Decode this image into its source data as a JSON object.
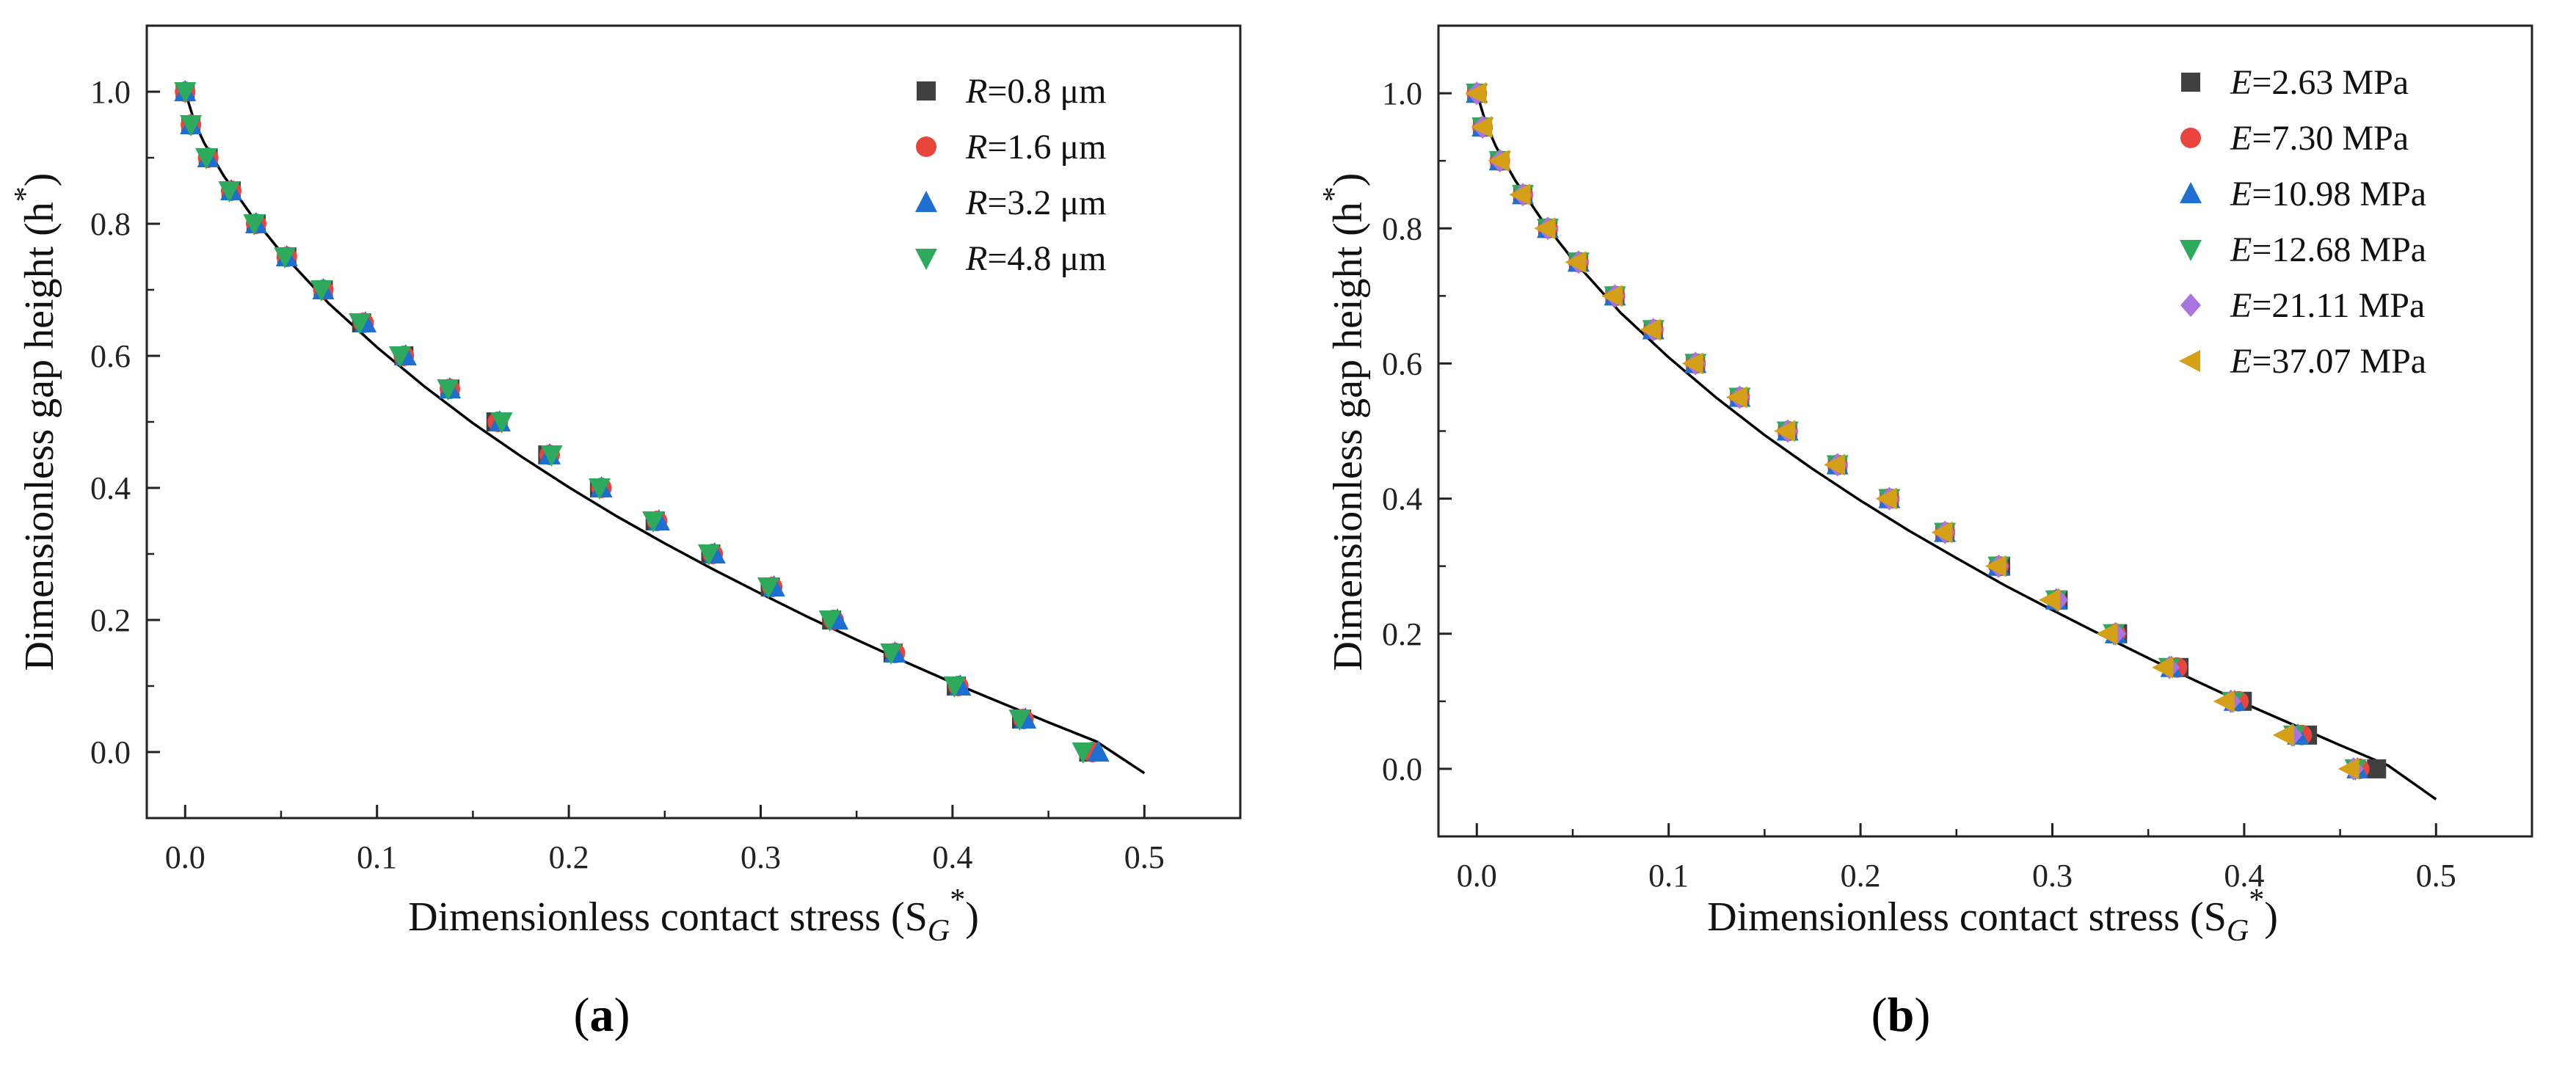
{
  "chart_data": [
    {
      "type": "scatter",
      "panel": "(a)",
      "caption": {
        "open": "(",
        "letter": "a",
        "close": ")"
      },
      "xlabel": "Dimensionless contact stress (S",
      "xlabel_sub": "G",
      "xlabel_sup": "*",
      "xlabel_end": ")",
      "ylabel": "Dimensionless gap height (h",
      "ylabel_sup": "*",
      "ylabel_end": ")",
      "xlim": [
        -0.02,
        0.55
      ],
      "ylim": [
        -0.1,
        1.1
      ],
      "xticks": [
        0.0,
        0.1,
        0.2,
        0.3,
        0.4,
        0.5
      ],
      "xtick_labels": [
        "0.0",
        "0.1",
        "0.2",
        "0.3",
        "0.4",
        "0.5"
      ],
      "yticks": [
        0.0,
        0.2,
        0.4,
        0.6,
        0.8,
        1.0
      ],
      "ytick_labels": [
        "0.0",
        "0.2",
        "0.4",
        "0.6",
        "0.8",
        "1.0"
      ],
      "legend_position": "top-right",
      "y_values": [
        1.0,
        0.95,
        0.9,
        0.85,
        0.8,
        0.75,
        0.7,
        0.65,
        0.6,
        0.55,
        0.5,
        0.45,
        0.4,
        0.35,
        0.3,
        0.25,
        0.2,
        0.15,
        0.1,
        0.05,
        0.0
      ],
      "fit_curve": {
        "x": [
          0.0,
          0.005,
          0.01,
          0.02,
          0.035,
          0.05,
          0.075,
          0.1,
          0.125,
          0.15,
          0.175,
          0.2,
          0.225,
          0.25,
          0.275,
          0.3,
          0.325,
          0.35,
          0.375,
          0.4,
          0.425,
          0.45,
          0.475,
          0.5
        ],
        "y": [
          1.0,
          0.953,
          0.922,
          0.873,
          0.811,
          0.757,
          0.679,
          0.613,
          0.553,
          0.498,
          0.448,
          0.401,
          0.357,
          0.316,
          0.277,
          0.24,
          0.204,
          0.17,
          0.137,
          0.105,
          0.075,
          0.045,
          0.016,
          -0.032
        ]
      },
      "series": [
        {
          "name_var": "R",
          "name_rest": "=0.8 μm",
          "marker": "square",
          "color": "#404040",
          "x": [
            0.0,
            0.003,
            0.012,
            0.024,
            0.037,
            0.053,
            0.072,
            0.092,
            0.114,
            0.138,
            0.162,
            0.189,
            0.216,
            0.245,
            0.274,
            0.305,
            0.337,
            0.369,
            0.402,
            0.436,
            0.471
          ]
        },
        {
          "name_var": "R",
          "name_rest": "=1.6 μm",
          "marker": "circle",
          "color": "#e8453c",
          "x": [
            0.0,
            0.003,
            0.012,
            0.024,
            0.037,
            0.053,
            0.072,
            0.093,
            0.114,
            0.138,
            0.163,
            0.19,
            0.217,
            0.246,
            0.275,
            0.306,
            0.338,
            0.37,
            0.403,
            0.437,
            0.473
          ]
        },
        {
          "name_var": "R",
          "name_rest": "=3.2 μm",
          "marker": "triangle-up",
          "color": "#1f6fd1",
          "x": [
            0.0,
            0.003,
            0.012,
            0.024,
            0.037,
            0.053,
            0.072,
            0.094,
            0.115,
            0.138,
            0.164,
            0.19,
            0.217,
            0.247,
            0.276,
            0.307,
            0.34,
            0.37,
            0.404,
            0.438,
            0.476
          ]
        },
        {
          "name_var": "R",
          "name_rest": "=4.8 μm",
          "marker": "triangle-down",
          "color": "#2eaa5c",
          "x": [
            0.0,
            0.003,
            0.011,
            0.023,
            0.036,
            0.052,
            0.071,
            0.091,
            0.112,
            0.137,
            0.165,
            0.191,
            0.216,
            0.244,
            0.273,
            0.304,
            0.336,
            0.368,
            0.401,
            0.435,
            0.468
          ]
        }
      ]
    },
    {
      "type": "scatter",
      "panel": "(b)",
      "caption": {
        "open": "(",
        "letter": "b",
        "close": ")"
      },
      "xlabel": "Dimensionless contact stress (S",
      "xlabel_sub": "G",
      "xlabel_sup": "*",
      "xlabel_end": ")",
      "ylabel": "Dimensionless gap height (h",
      "ylabel_sup": "*",
      "ylabel_end": ")",
      "xlim": [
        -0.02,
        0.55
      ],
      "ylim": [
        -0.1,
        1.1
      ],
      "xticks": [
        0.0,
        0.1,
        0.2,
        0.3,
        0.4,
        0.5
      ],
      "xtick_labels": [
        "0.0",
        "0.1",
        "0.2",
        "0.3",
        "0.4",
        "0.5"
      ],
      "yticks": [
        0.0,
        0.2,
        0.4,
        0.6,
        0.8,
        1.0
      ],
      "ytick_labels": [
        "0.0",
        "0.2",
        "0.4",
        "0.6",
        "0.8",
        "1.0"
      ],
      "legend_position": "top-right",
      "y_values": [
        1.0,
        0.95,
        0.9,
        0.85,
        0.8,
        0.75,
        0.7,
        0.65,
        0.6,
        0.55,
        0.5,
        0.45,
        0.4,
        0.35,
        0.3,
        0.25,
        0.2,
        0.15,
        0.1,
        0.05,
        0.0
      ],
      "fit_curve": {
        "x": [
          0.0,
          0.005,
          0.01,
          0.02,
          0.035,
          0.05,
          0.075,
          0.1,
          0.125,
          0.15,
          0.175,
          0.2,
          0.225,
          0.25,
          0.275,
          0.3,
          0.325,
          0.35,
          0.375,
          0.4,
          0.425,
          0.45,
          0.475,
          0.5
        ],
        "y": [
          1.0,
          0.953,
          0.921,
          0.871,
          0.808,
          0.754,
          0.675,
          0.609,
          0.549,
          0.494,
          0.444,
          0.397,
          0.353,
          0.312,
          0.272,
          0.235,
          0.199,
          0.164,
          0.13,
          0.097,
          0.066,
          0.035,
          0.005,
          -0.045
        ]
      },
      "series": [
        {
          "name_var": "E",
          "name_rest": "=2.63 MPa",
          "marker": "square",
          "color": "#404040",
          "x": [
            0.0,
            0.003,
            0.012,
            0.024,
            0.037,
            0.053,
            0.072,
            0.092,
            0.114,
            0.137,
            0.162,
            0.188,
            0.215,
            0.244,
            0.273,
            0.303,
            0.334,
            0.366,
            0.399,
            0.433,
            0.469
          ]
        },
        {
          "name_var": "E",
          "name_rest": "=7.30 MPa",
          "marker": "circle",
          "color": "#e8453c",
          "x": [
            0.0,
            0.003,
            0.012,
            0.024,
            0.037,
            0.053,
            0.072,
            0.092,
            0.114,
            0.137,
            0.162,
            0.188,
            0.215,
            0.244,
            0.272,
            0.302,
            0.333,
            0.365,
            0.397,
            0.43,
            0.46
          ]
        },
        {
          "name_var": "E",
          "name_rest": "=10.98 MPa",
          "marker": "triangle-up",
          "color": "#1f6fd1",
          "x": [
            0.0,
            0.003,
            0.012,
            0.024,
            0.037,
            0.053,
            0.072,
            0.092,
            0.114,
            0.137,
            0.162,
            0.188,
            0.215,
            0.244,
            0.272,
            0.302,
            0.333,
            0.362,
            0.395,
            0.428,
            0.459
          ]
        },
        {
          "name_var": "E",
          "name_rest": "=12.68 MPa",
          "marker": "triangle-down",
          "color": "#2eaa5c",
          "x": [
            0.0,
            0.003,
            0.012,
            0.024,
            0.037,
            0.053,
            0.072,
            0.092,
            0.114,
            0.137,
            0.162,
            0.188,
            0.215,
            0.244,
            0.272,
            0.302,
            0.332,
            0.361,
            0.394,
            0.426,
            0.458
          ]
        },
        {
          "name_var": "E",
          "name_rest": "=21.11 MPa",
          "marker": "diamond",
          "color": "#a774e0",
          "x": [
            0.0,
            0.003,
            0.012,
            0.024,
            0.037,
            0.053,
            0.072,
            0.092,
            0.114,
            0.137,
            0.162,
            0.188,
            0.215,
            0.244,
            0.272,
            0.303,
            0.333,
            0.361,
            0.393,
            0.425,
            0.457
          ]
        },
        {
          "name_var": "E",
          "name_rest": "=37.07 MPa",
          "marker": "triangle-left",
          "color": "#d4a017",
          "x": [
            0.0,
            0.003,
            0.012,
            0.023,
            0.036,
            0.052,
            0.071,
            0.091,
            0.113,
            0.136,
            0.161,
            0.187,
            0.214,
            0.243,
            0.271,
            0.299,
            0.329,
            0.358,
            0.39,
            0.421,
            0.455
          ]
        }
      ]
    }
  ]
}
